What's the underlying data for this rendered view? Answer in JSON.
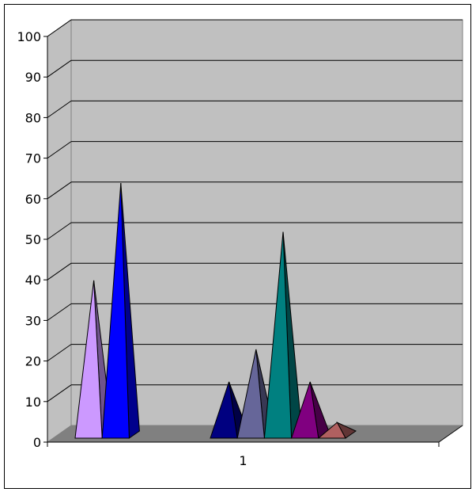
{
  "chart_data": {
    "type": "bar",
    "style": "3d-pyramid",
    "title": "",
    "xlabel": "",
    "ylabel": "",
    "categories": [
      "1"
    ],
    "ylim": [
      0,
      100
    ],
    "yticks": [
      "0",
      "10",
      "20",
      "30",
      "40",
      "50",
      "60",
      "70",
      "80",
      "90",
      "100"
    ],
    "grid": true,
    "legend": "none",
    "series": [
      {
        "values": [
          38
        ],
        "color": "#CC99FF"
      },
      {
        "values": [
          62
        ],
        "color": "#0000FF"
      },
      {
        "values": [
          0
        ],
        "color": "#C0C0C0"
      },
      {
        "values": [
          0
        ],
        "color": "#C0C0C0"
      },
      {
        "values": [
          0
        ],
        "color": "#C0C0C0"
      },
      {
        "values": [
          13
        ],
        "color": "#000080"
      },
      {
        "values": [
          21
        ],
        "color": "#666699"
      },
      {
        "values": [
          50
        ],
        "color": "#008080"
      },
      {
        "values": [
          13
        ],
        "color": "#800080"
      },
      {
        "values": [
          3
        ],
        "color": "#B06060"
      }
    ],
    "wall_color": "#C0C0C0",
    "floor_color": "#808080"
  }
}
